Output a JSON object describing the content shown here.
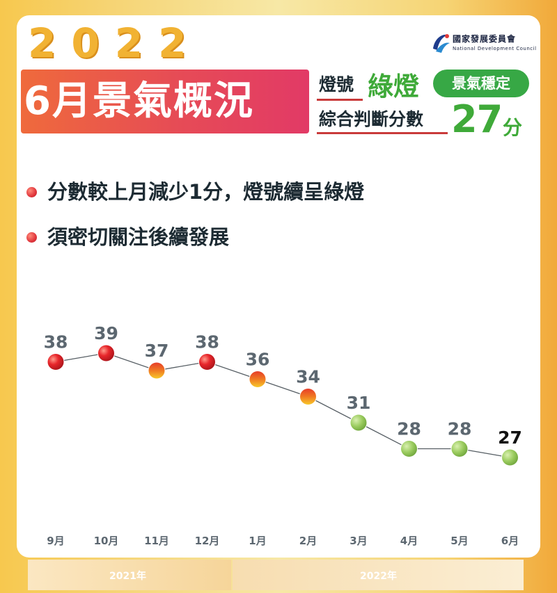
{
  "header": {
    "year": "2022",
    "banner": "6月景氣概況",
    "logo_zh": "國家發展委員會",
    "logo_en": "National Development Council",
    "signal_label": "燈號",
    "signal_value": "綠燈",
    "status": "景氣穩定",
    "score_label": "綜合判斷分數",
    "score_value": "27",
    "score_unit": "分"
  },
  "bullets": [
    "分數較上月減少1分，燈號續呈綠燈",
    "須密切關注後續發展"
  ],
  "year_labels": [
    "2021年",
    "2022年"
  ],
  "colors": {
    "red": "#e0262c",
    "yellow_red": "#f0a020",
    "green": "#9acb5e",
    "accent_green": "#3faa39"
  },
  "chart_data": {
    "type": "line",
    "categories": [
      "9月",
      "10月",
      "11月",
      "12月",
      "1月",
      "2月",
      "3月",
      "4月",
      "5月",
      "6月"
    ],
    "values": [
      38,
      39,
      37,
      38,
      36,
      34,
      31,
      28,
      28,
      27
    ],
    "signals": [
      "red",
      "red",
      "yellow_red",
      "red",
      "yellow_red",
      "yellow_red",
      "green",
      "green",
      "green",
      "green"
    ],
    "title": "",
    "xlabel": "",
    "ylabel": "",
    "ylim": [
      25,
      40
    ],
    "grid": false
  }
}
